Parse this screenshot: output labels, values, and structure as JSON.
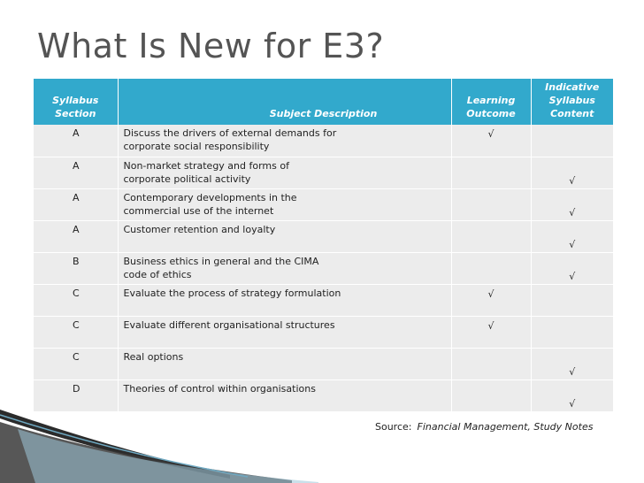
{
  "title": "What Is New for E3?",
  "table": {
    "headers": {
      "section": [
        "Syllabus",
        "Section"
      ],
      "description": "Subject Description",
      "outcome": [
        "Learning",
        "Outcome"
      ],
      "content": [
        "Indicative",
        "Syllabus",
        "Content"
      ]
    },
    "check_mark": "√",
    "rows": [
      {
        "section": "A",
        "desc1": "Discuss the drivers of external demands for",
        "desc2": "corporate social responsibility",
        "outcome": "√",
        "content": ""
      },
      {
        "section": "A",
        "desc1": "Non-market strategy and forms of",
        "desc2": "corporate political activity",
        "outcome": "",
        "content": "√"
      },
      {
        "section": "A",
        "desc1": "Contemporary developments in the",
        "desc2": "commercial use of the internet",
        "outcome": "",
        "content": "√"
      },
      {
        "section": "A",
        "desc1": "Customer retention and loyalty",
        "desc2": "",
        "outcome": "",
        "content": "√"
      },
      {
        "section": "B",
        "desc1": "Business ethics in general and the CIMA",
        "desc2": "code of ethics",
        "outcome": "",
        "content": "√"
      },
      {
        "section": "C",
        "desc1": "Evaluate the process of strategy formulation",
        "desc2": "",
        "outcome": "√",
        "content": ""
      },
      {
        "section": "C",
        "desc1": "Evaluate different organisational structures",
        "desc2": "",
        "outcome": "√",
        "content": ""
      },
      {
        "section": "C",
        "desc1": "Real options",
        "desc2": "",
        "outcome": "",
        "content": "√"
      },
      {
        "section": "D",
        "desc1": "Theories of control within organisations",
        "desc2": "",
        "outcome": "",
        "content": "√"
      }
    ]
  },
  "source": {
    "label": "Source:",
    "reference": "Financial Management, Study Notes"
  },
  "colors": {
    "header_bg": "#32a9cc",
    "row_bg": "#ececec",
    "title": "#545454"
  }
}
